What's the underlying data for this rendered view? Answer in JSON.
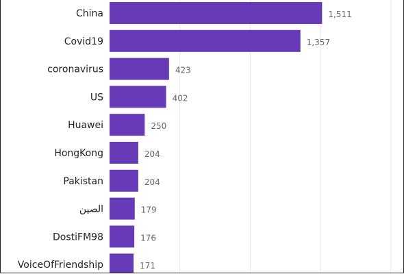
{
  "chart_data": {
    "type": "bar",
    "orientation": "horizontal",
    "categories": [
      "China",
      "Covid19",
      "coronavirus",
      "US",
      "Huawei",
      "HongKong",
      "Pakistan",
      "الصين",
      "DostiFM98",
      "VoiceOfFriendship"
    ],
    "values": [
      1511,
      1357,
      423,
      402,
      250,
      204,
      204,
      179,
      176,
      171
    ],
    "value_labels": [
      "1,511",
      "1,357",
      "423",
      "402",
      "250",
      "204",
      "204",
      "179",
      "176",
      "171"
    ],
    "xlim": [
      0,
      2000
    ],
    "grid": true,
    "bar_color": "#673AB7",
    "gridline_color": "#E6E6E6"
  }
}
